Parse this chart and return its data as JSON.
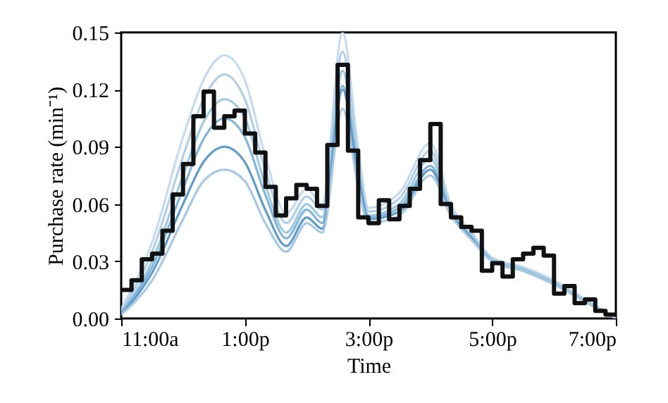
{
  "chart_data": {
    "type": "line",
    "xlabel": "Time",
    "ylabel": "Purchase rate (min⁻¹)",
    "xlim": [
      11,
      19
    ],
    "xticks": [
      {
        "value": 11,
        "label": "11:00a"
      },
      {
        "value": 13,
        "label": "1:00p"
      },
      {
        "value": 15,
        "label": "3:00p"
      },
      {
        "value": 17,
        "label": "5:00p"
      },
      {
        "value": 19,
        "label": "7:00p"
      }
    ],
    "ylim": [
      0,
      0.15
    ],
    "yticks": [
      {
        "value": 0,
        "label": "0.00"
      },
      0.03,
      0.06,
      0.09,
      0.12,
      0.15
    ],
    "grid": false,
    "series": [
      {
        "type": "line",
        "color": "#c6dbef",
        "x": [
          11,
          11.5,
          12,
          12.33,
          12.67,
          13,
          13.33,
          13.67,
          14,
          14.25,
          14.58,
          14.83,
          15,
          15.5,
          16,
          16.33,
          16.67,
          17,
          17.5,
          18,
          18.5,
          19
        ],
        "values": [
          0.005,
          0.04,
          0.095,
          0.125,
          0.138,
          0.125,
          0.085,
          0.055,
          0.068,
          0.06,
          0.15,
          0.09,
          0.058,
          0.066,
          0.092,
          0.06,
          0.045,
          0.032,
          0.027,
          0.02,
          0.01,
          0.0
        ]
      },
      {
        "type": "line",
        "color": "#b3cfe8",
        "x": [
          11,
          11.5,
          12,
          12.33,
          12.67,
          13,
          13.33,
          13.67,
          14,
          14.25,
          14.58,
          14.83,
          15,
          15.5,
          16,
          16.33,
          16.67,
          17,
          17.5,
          18,
          18.5,
          19
        ],
        "values": [
          0.004,
          0.035,
          0.085,
          0.115,
          0.128,
          0.115,
          0.078,
          0.05,
          0.064,
          0.057,
          0.14,
          0.085,
          0.056,
          0.063,
          0.088,
          0.058,
          0.044,
          0.031,
          0.026,
          0.019,
          0.01,
          0.0
        ]
      },
      {
        "type": "line",
        "color": "#9ecae1",
        "x": [
          11,
          11.5,
          12,
          12.33,
          12.67,
          13,
          13.33,
          13.67,
          14,
          14.25,
          14.58,
          14.83,
          15,
          15.5,
          16,
          16.33,
          16.67,
          17,
          17.5,
          18,
          18.5,
          19
        ],
        "values": [
          0.003,
          0.03,
          0.075,
          0.103,
          0.115,
          0.105,
          0.07,
          0.045,
          0.06,
          0.053,
          0.13,
          0.08,
          0.054,
          0.06,
          0.084,
          0.057,
          0.043,
          0.031,
          0.026,
          0.019,
          0.009,
          0.0
        ]
      },
      {
        "type": "line",
        "color": "#84b5d8",
        "x": [
          11,
          11.5,
          12,
          12.33,
          12.67,
          13,
          13.33,
          13.67,
          14,
          14.25,
          14.58,
          14.83,
          15,
          15.5,
          16,
          16.33,
          16.67,
          17,
          17.5,
          18,
          18.5,
          19
        ],
        "values": [
          0.003,
          0.027,
          0.068,
          0.094,
          0.105,
          0.095,
          0.065,
          0.042,
          0.057,
          0.05,
          0.122,
          0.077,
          0.053,
          0.058,
          0.08,
          0.056,
          0.042,
          0.03,
          0.025,
          0.018,
          0.009,
          0.0
        ]
      },
      {
        "type": "line",
        "color": "#5f9cc9",
        "x": [
          11,
          11.5,
          12,
          12.33,
          12.67,
          13,
          13.33,
          13.67,
          14,
          14.25,
          14.58,
          14.83,
          15,
          15.5,
          16,
          16.33,
          16.67,
          17,
          17.5,
          18,
          18.5,
          19
        ],
        "values": [
          0.002,
          0.024,
          0.06,
          0.082,
          0.09,
          0.082,
          0.057,
          0.038,
          0.053,
          0.047,
          0.12,
          0.075,
          0.052,
          0.056,
          0.078,
          0.055,
          0.042,
          0.03,
          0.025,
          0.018,
          0.009,
          0.0
        ]
      },
      {
        "type": "line",
        "color": "#a9c8e2",
        "x": [
          11,
          11.5,
          12,
          12.33,
          12.67,
          13,
          13.33,
          13.67,
          14,
          14.25,
          14.58,
          14.83,
          15,
          15.5,
          16,
          16.33,
          16.67,
          17,
          17.5,
          18,
          18.5,
          19
        ],
        "values": [
          0.002,
          0.02,
          0.052,
          0.072,
          0.078,
          0.072,
          0.05,
          0.035,
          0.05,
          0.045,
          0.11,
          0.07,
          0.05,
          0.054,
          0.075,
          0.054,
          0.041,
          0.03,
          0.025,
          0.018,
          0.009,
          0.0
        ]
      },
      {
        "type": "step",
        "color": "#111111",
        "x": [
          11,
          11.167,
          11.333,
          11.5,
          11.667,
          11.833,
          12,
          12.167,
          12.333,
          12.5,
          12.667,
          12.833,
          13,
          13.167,
          13.333,
          13.5,
          13.667,
          13.833,
          14,
          14.167,
          14.333,
          14.5,
          14.667,
          14.833,
          15,
          15.167,
          15.333,
          15.5,
          15.667,
          15.833,
          16,
          16.167,
          16.333,
          16.5,
          16.667,
          16.833,
          17,
          17.167,
          17.333,
          17.5,
          17.667,
          17.833,
          18,
          18.167,
          18.333,
          18.5,
          18.667,
          18.833,
          19
        ],
        "values": [
          0.015,
          0.02,
          0.031,
          0.034,
          0.046,
          0.065,
          0.081,
          0.106,
          0.119,
          0.1,
          0.106,
          0.109,
          0.097,
          0.087,
          0.069,
          0.054,
          0.063,
          0.07,
          0.068,
          0.059,
          0.091,
          0.133,
          0.088,
          0.053,
          0.05,
          0.062,
          0.052,
          0.059,
          0.068,
          0.083,
          0.102,
          0.06,
          0.053,
          0.048,
          0.046,
          0.025,
          0.029,
          0.022,
          0.031,
          0.034,
          0.037,
          0.033,
          0.013,
          0.017,
          0.008,
          0.01,
          0.004,
          0.002,
          0.002
        ]
      }
    ]
  }
}
